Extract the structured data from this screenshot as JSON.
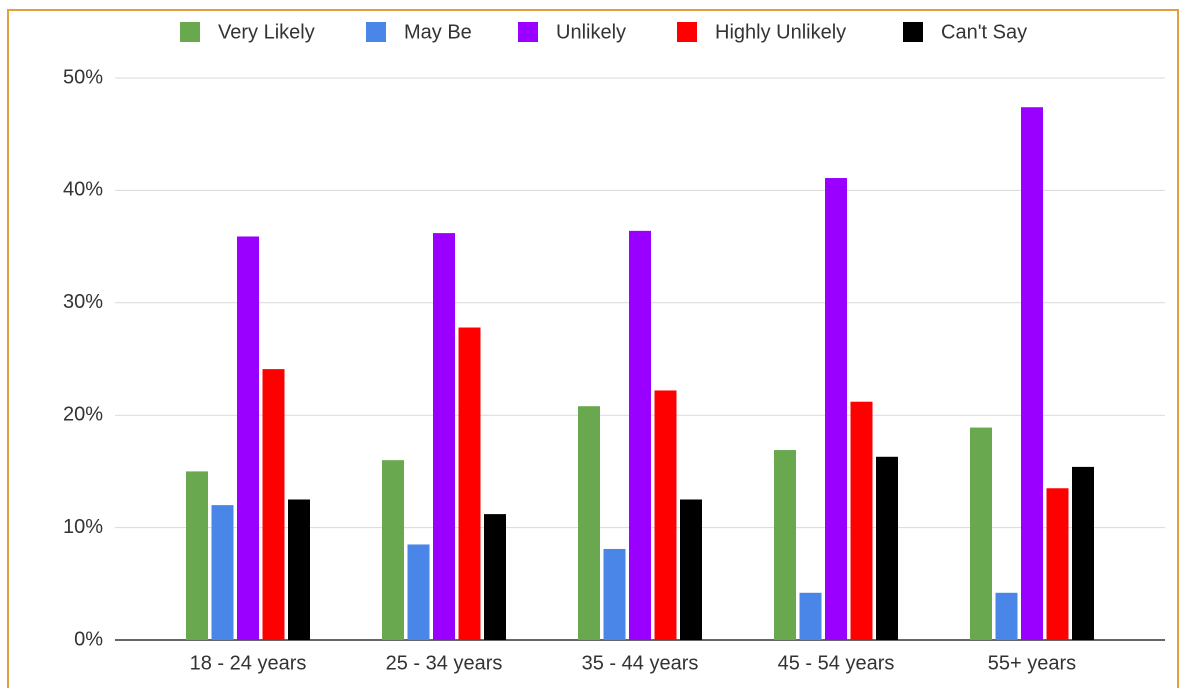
{
  "chart_data": {
    "type": "bar",
    "categories": [
      "18 - 24 years",
      "25 - 34 years",
      "35 - 44 years",
      "45 - 54 years",
      "55+ years"
    ],
    "series": [
      {
        "name": "Very Likely",
        "color": "#6aa84f",
        "values": [
          15,
          16,
          20.8,
          16.9,
          18.9
        ]
      },
      {
        "name": "May Be",
        "color": "#4a86e8",
        "values": [
          12,
          8.5,
          8.1,
          4.2,
          4.2
        ]
      },
      {
        "name": "Unlikely",
        "color": "#9900ff",
        "values": [
          35.9,
          36.2,
          36.4,
          41.1,
          47.4
        ]
      },
      {
        "name": "Highly Unlikely",
        "color": "#ff0000",
        "values": [
          24.1,
          27.8,
          22.2,
          21.2,
          13.5
        ]
      },
      {
        "name": "Can't Say",
        "color": "#000000",
        "values": [
          12.5,
          11.2,
          12.5,
          16.3,
          15.4
        ]
      }
    ],
    "ylim": [
      0,
      50
    ],
    "yticks": [
      {
        "value": 0,
        "label": "0%"
      },
      {
        "value": 10,
        "label": "10%"
      },
      {
        "value": 20,
        "label": "20%"
      },
      {
        "value": 30,
        "label": "30%"
      },
      {
        "value": 40,
        "label": "40%"
      },
      {
        "value": 50,
        "label": "50%"
      }
    ],
    "grid": true,
    "legend": "top"
  }
}
